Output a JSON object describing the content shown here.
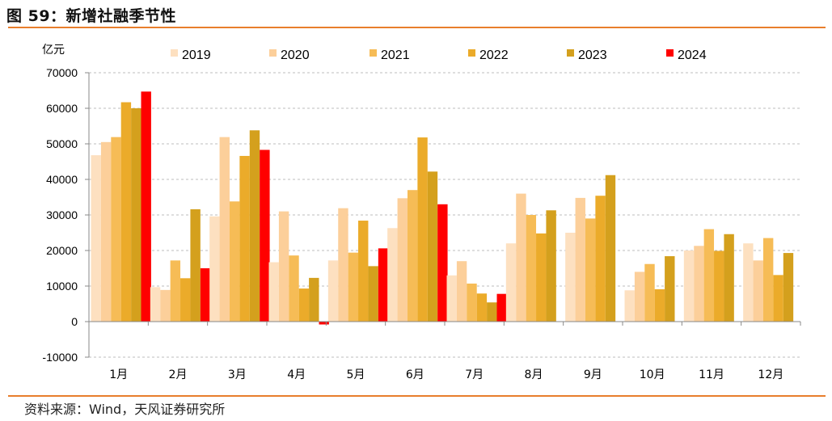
{
  "figure_title": "图 59：新增社融季节性",
  "source_note": "资料来源：Wind，天风证券研究所",
  "chart_data": {
    "type": "bar",
    "unit_label": "亿元",
    "categories": [
      "1月",
      "2月",
      "3月",
      "4月",
      "5月",
      "6月",
      "7月",
      "8月",
      "9月",
      "10月",
      "11月",
      "12月"
    ],
    "ylim": [
      -10000,
      70000
    ],
    "yticks": [
      -10000,
      0,
      10000,
      20000,
      30000,
      40000,
      50000,
      60000,
      70000
    ],
    "grid": true,
    "legend_position": "top",
    "series": [
      {
        "name": "2019",
        "color": "#fde0c0",
        "values": [
          46800,
          9700,
          29600,
          16700,
          17200,
          26300,
          13000,
          22000,
          25000,
          8800,
          20000,
          22000
        ]
      },
      {
        "name": "2020",
        "color": "#fccf9a",
        "values": [
          50500,
          8900,
          51900,
          31000,
          31900,
          34700,
          17000,
          36000,
          34800,
          14000,
          21300,
          17200
        ]
      },
      {
        "name": "2021",
        "color": "#f6bc56",
        "values": [
          51900,
          17200,
          33800,
          18600,
          19400,
          37000,
          10700,
          30000,
          29000,
          16200,
          26000,
          23500
        ]
      },
      {
        "name": "2022",
        "color": "#ebab2a",
        "values": [
          61700,
          12200,
          46600,
          9300,
          28400,
          51800,
          7900,
          24800,
          35400,
          9100,
          19900,
          13100
        ]
      },
      {
        "name": "2023",
        "color": "#d4a01d",
        "values": [
          60000,
          31600,
          53800,
          12300,
          15600,
          42200,
          5400,
          31300,
          41200,
          18400,
          24600,
          19300
        ]
      },
      {
        "name": "2024",
        "color": "#ff0000",
        "values": [
          64700,
          15000,
          48300,
          -800,
          20600,
          33000,
          7800,
          null,
          null,
          null,
          null,
          null
        ]
      }
    ]
  }
}
